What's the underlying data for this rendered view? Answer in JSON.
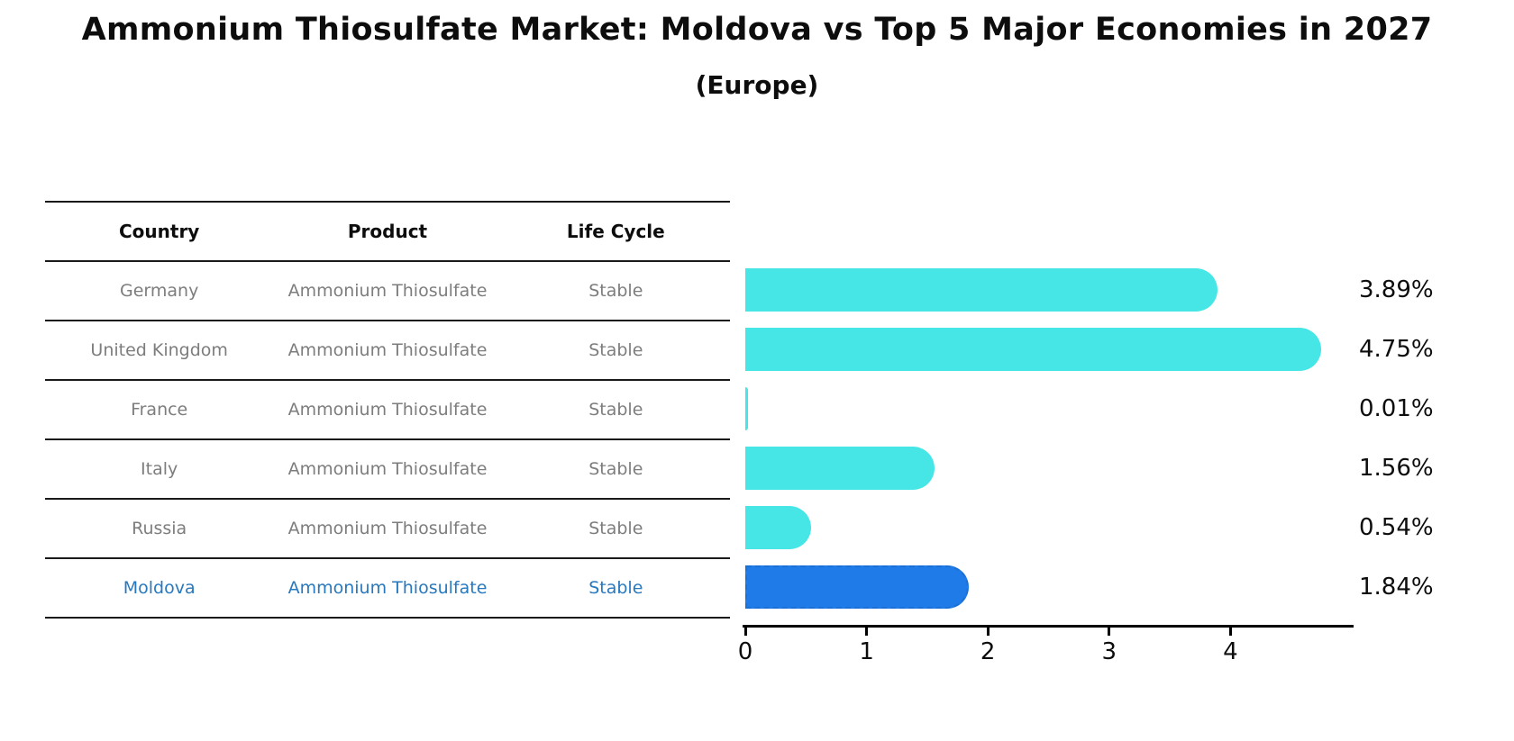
{
  "title": "Ammonium Thiosulfate Market: Moldova vs Top 5 Major Economies in 2027",
  "subtitle": "(Europe)",
  "table": {
    "headers": [
      "Country",
      "Product",
      "Life Cycle"
    ],
    "rows": [
      {
        "country": "Germany",
        "product": "Ammonium Thiosulfate",
        "life_cycle": "Stable",
        "highlight": false
      },
      {
        "country": "United Kingdom",
        "product": "Ammonium Thiosulfate",
        "life_cycle": "Stable",
        "highlight": false
      },
      {
        "country": "France",
        "product": "Ammonium Thiosulfate",
        "life_cycle": "Stable",
        "highlight": false
      },
      {
        "country": "Italy",
        "product": "Ammonium Thiosulfate",
        "life_cycle": "Stable",
        "highlight": false
      },
      {
        "country": "Russia",
        "product": "Ammonium Thiosulfate",
        "life_cycle": "Stable",
        "highlight": false
      },
      {
        "country": "Moldova",
        "product": "Ammonium Thiosulfate",
        "life_cycle": "Stable",
        "highlight": true
      }
    ]
  },
  "chart_data": {
    "type": "bar",
    "orientation": "horizontal",
    "categories": [
      "Germany",
      "United Kingdom",
      "France",
      "Italy",
      "Russia",
      "Moldova"
    ],
    "values": [
      3.89,
      4.75,
      0.01,
      1.56,
      0.54,
      1.84
    ],
    "value_labels": [
      "3.89%",
      "4.75%",
      "0.01%",
      "1.56%",
      "0.54%",
      "1.84%"
    ],
    "x_ticks": [
      "0",
      "1",
      "2",
      "3",
      "4"
    ],
    "xlim": [
      0,
      5
    ],
    "grid": false,
    "legend": false,
    "bar_color": "#46e6e6",
    "highlight_index": 5,
    "highlight_bar_color": "#1e7be8",
    "highlight_bar_border_color": "#1c6fd4",
    "highlight_text_color": "#2878be",
    "table_text_color": "#7d7d7d",
    "axis_color": "#000000",
    "label_color": "#0d0d0d"
  }
}
